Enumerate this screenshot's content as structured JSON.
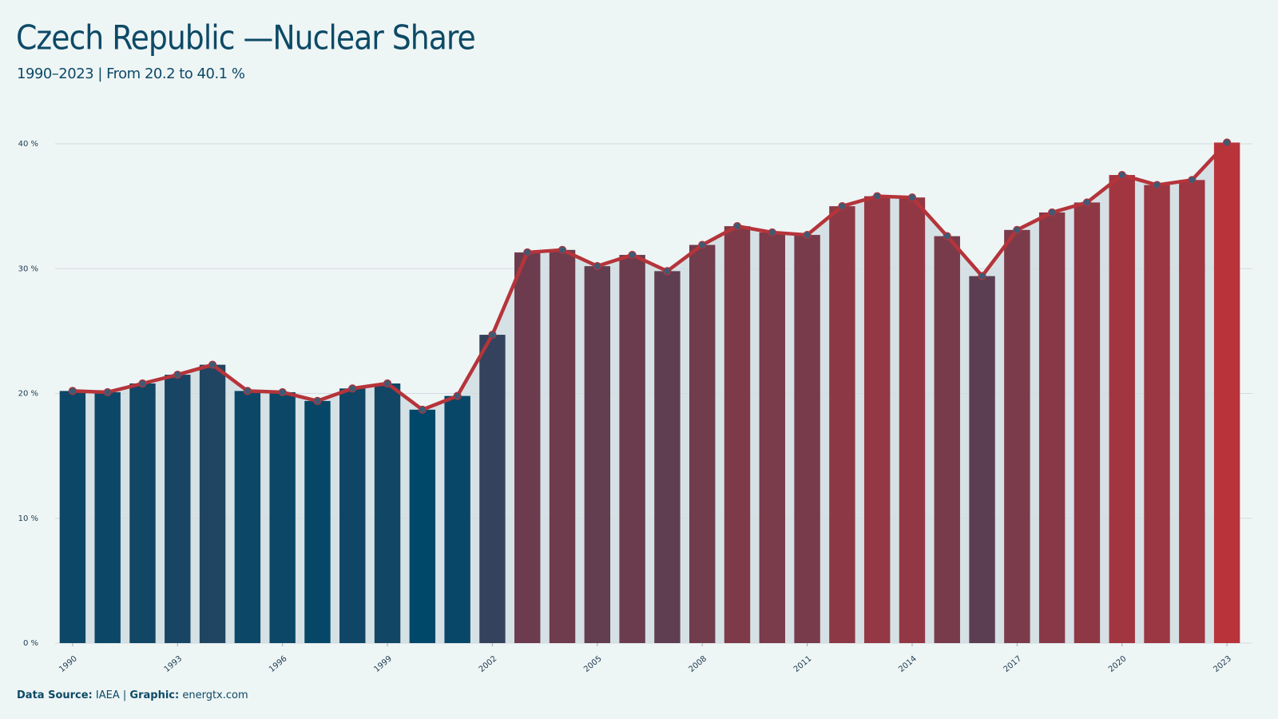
{
  "chart_data": {
    "type": "bar_line",
    "title": "Czech Republic —Nuclear Share",
    "subtitle": "1990–2023 | From 20.2 to 40.1 %",
    "x": [
      1990,
      1991,
      1992,
      1993,
      1994,
      1995,
      1996,
      1997,
      1998,
      1999,
      2000,
      2001,
      2002,
      2003,
      2004,
      2005,
      2006,
      2007,
      2008,
      2009,
      2010,
      2011,
      2012,
      2013,
      2014,
      2015,
      2016,
      2017,
      2018,
      2019,
      2020,
      2021,
      2022,
      2023
    ],
    "values": [
      20.2,
      20.1,
      20.8,
      21.5,
      22.3,
      20.2,
      20.1,
      19.4,
      20.4,
      20.8,
      18.7,
      19.8,
      24.7,
      31.3,
      31.5,
      30.2,
      31.1,
      29.8,
      31.9,
      33.4,
      32.9,
      32.7,
      35.0,
      35.8,
      35.7,
      32.6,
      29.4,
      33.1,
      34.5,
      35.3,
      37.5,
      36.7,
      37.1,
      40.1
    ],
    "color_scale": [
      "#00486a",
      "#b8343a"
    ],
    "line_color": "#b5343a",
    "marker_color": "#3f5a74",
    "area_color": "#d5e1e5",
    "xlim": [
      1989.5,
      2023.5
    ],
    "xticks": [
      1990,
      1993,
      1996,
      1999,
      2002,
      2005,
      2008,
      2011,
      2014,
      2017,
      2020,
      2023
    ],
    "ylim": [
      0,
      40
    ],
    "yticks": [
      {
        "value": 0,
        "label": "0 %"
      },
      {
        "value": 10,
        "label": "10 %"
      },
      {
        "value": 20,
        "label": "20 %"
      },
      {
        "value": 30,
        "label": "30 %"
      },
      {
        "value": 40,
        "label": "40 %"
      }
    ],
    "grid": true,
    "footer": {
      "source_label": "Data Source:",
      "source": "IAEA",
      "separator": "|",
      "graphic_label": "Graphic:",
      "graphic": "energtx.com"
    }
  }
}
